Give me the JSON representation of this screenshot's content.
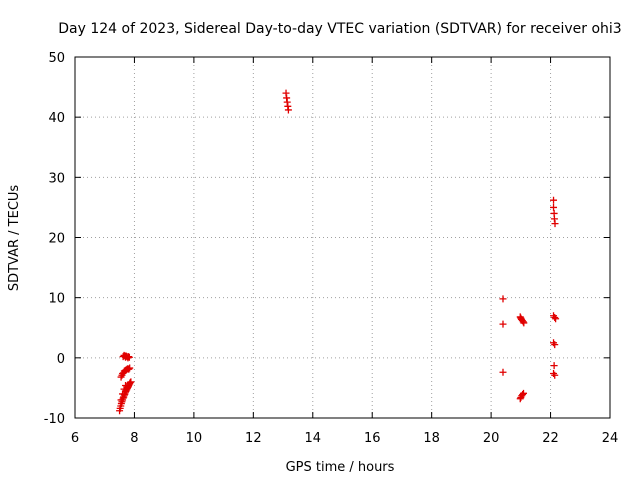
{
  "chart_data": {
    "type": "scatter",
    "title": "Day 124 of 2023, Sidereal Day-to-day VTEC variation (SDTVAR) for receiver ohi3",
    "xlabel": "GPS time / hours",
    "ylabel": "SDTVAR / TECUs",
    "xlim": [
      6,
      24
    ],
    "ylim": [
      -10,
      50
    ],
    "xticks": [
      "6",
      "8",
      "10",
      "12",
      "14",
      "16",
      "18",
      "20",
      "22",
      "24"
    ],
    "yticks": [
      "-10",
      "0",
      "10",
      "20",
      "30",
      "40",
      "50"
    ],
    "grid": true,
    "marker": "plus",
    "color": "#e00000",
    "series": [
      {
        "name": "SDTVAR",
        "points": [
          [
            7.62,
            0.2
          ],
          [
            7.65,
            0.4
          ],
          [
            7.68,
            0.3
          ],
          [
            7.7,
            0.1
          ],
          [
            7.72,
            0.3
          ],
          [
            7.75,
            0.2
          ],
          [
            7.78,
            0.0
          ],
          [
            7.8,
            0.2
          ],
          [
            7.83,
            0.1
          ],
          [
            7.55,
            -3.2
          ],
          [
            7.58,
            -2.9
          ],
          [
            7.6,
            -2.6
          ],
          [
            7.63,
            -2.5
          ],
          [
            7.66,
            -2.2
          ],
          [
            7.69,
            -2.1
          ],
          [
            7.72,
            -2.0
          ],
          [
            7.75,
            -1.9
          ],
          [
            7.78,
            -1.8
          ],
          [
            7.81,
            -1.9
          ],
          [
            7.84,
            -1.7
          ],
          [
            7.5,
            -8.8
          ],
          [
            7.52,
            -8.4
          ],
          [
            7.54,
            -8.0
          ],
          [
            7.56,
            -7.6
          ],
          [
            7.58,
            -7.3
          ],
          [
            7.6,
            -7.0
          ],
          [
            7.62,
            -6.7
          ],
          [
            7.64,
            -6.5
          ],
          [
            7.66,
            -6.2
          ],
          [
            7.68,
            -6.0
          ],
          [
            7.7,
            -5.7
          ],
          [
            7.72,
            -5.5
          ],
          [
            7.74,
            -5.3
          ],
          [
            7.76,
            -5.1
          ],
          [
            7.78,
            -4.9
          ],
          [
            7.8,
            -4.7
          ],
          [
            7.82,
            -4.5
          ],
          [
            7.84,
            -4.3
          ],
          [
            7.86,
            -4.1
          ],
          [
            7.88,
            -4.0
          ],
          [
            7.55,
            -7.0
          ],
          [
            7.6,
            -6.0
          ],
          [
            7.65,
            -5.2
          ],
          [
            7.7,
            -4.6
          ],
          [
            13.1,
            44.0
          ],
          [
            13.12,
            43.2
          ],
          [
            13.14,
            42.5
          ],
          [
            13.16,
            41.8
          ],
          [
            13.18,
            41.2
          ],
          [
            20.4,
            9.8
          ],
          [
            20.4,
            5.6
          ],
          [
            20.4,
            -2.4
          ],
          [
            20.98,
            6.8
          ],
          [
            21.0,
            6.6
          ],
          [
            21.02,
            6.4
          ],
          [
            21.05,
            6.2
          ],
          [
            21.08,
            6.0
          ],
          [
            21.1,
            5.8
          ],
          [
            20.98,
            -6.8
          ],
          [
            21.0,
            -6.6
          ],
          [
            21.03,
            -6.3
          ],
          [
            21.06,
            -6.1
          ],
          [
            21.09,
            -5.9
          ],
          [
            22.1,
            26.2
          ],
          [
            22.1,
            25.0
          ],
          [
            22.12,
            24.0
          ],
          [
            22.13,
            23.1
          ],
          [
            22.15,
            22.3
          ],
          [
            22.1,
            7.0
          ],
          [
            22.14,
            6.7
          ],
          [
            22.17,
            6.5
          ],
          [
            22.1,
            2.5
          ],
          [
            22.14,
            2.2
          ],
          [
            22.12,
            -1.3
          ],
          [
            22.1,
            -2.6
          ],
          [
            22.14,
            -2.9
          ]
        ]
      }
    ]
  }
}
